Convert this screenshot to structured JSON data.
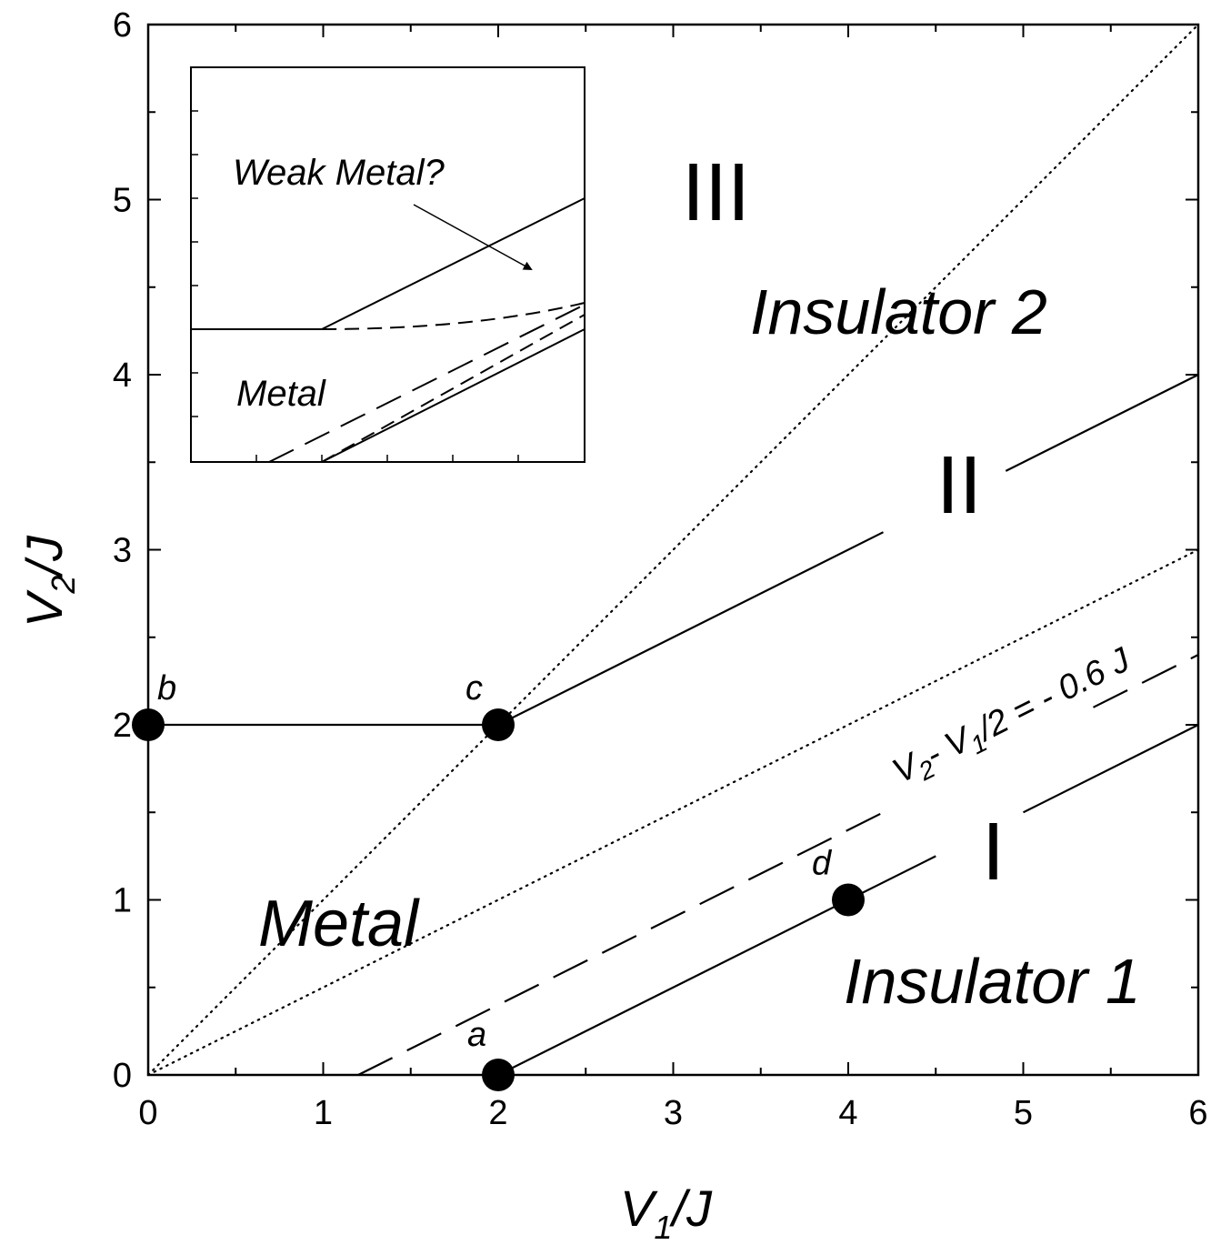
{
  "chart_data": {
    "type": "line",
    "xlabel_main": "V",
    "xlabel_sub": "1",
    "xlabel_tail": "/J",
    "ylabel_main": "V",
    "ylabel_sub": "2",
    "ylabel_tail": "/J",
    "xlim": [
      0,
      6
    ],
    "ylim": [
      0,
      6
    ],
    "x_ticks": [
      "0",
      "1",
      "2",
      "3",
      "4",
      "5",
      "6"
    ],
    "y_ticks": [
      "0",
      "1",
      "2",
      "3",
      "4",
      "5",
      "6"
    ],
    "grid": false,
    "series": [
      {
        "style": "solid",
        "x": [
          0,
          2
        ],
        "y": [
          2,
          2
        ]
      },
      {
        "style": "solid",
        "x": [
          2,
          4.2
        ],
        "y": [
          2,
          3.1
        ]
      },
      {
        "style": "solid",
        "x": [
          4.9,
          6
        ],
        "y": [
          3.45,
          4
        ]
      },
      {
        "style": "solid",
        "x": [
          2,
          4.5
        ],
        "y": [
          0,
          1.25
        ]
      },
      {
        "style": "solid",
        "x": [
          5.0,
          6
        ],
        "y": [
          1.5,
          2
        ]
      },
      {
        "style": "dotted",
        "x": [
          0,
          6
        ],
        "y": [
          0,
          6
        ]
      },
      {
        "style": "dotted",
        "x": [
          0,
          6
        ],
        "y": [
          0,
          3
        ]
      },
      {
        "style": "dashed",
        "x": [
          1.2,
          4.2
        ],
        "y": [
          0,
          1.5
        ]
      },
      {
        "style": "dashed",
        "x": [
          5.4,
          6
        ],
        "y": [
          2.1,
          2.4
        ]
      }
    ],
    "points": [
      {
        "label": "a",
        "x": 2,
        "y": 0
      },
      {
        "label": "b",
        "x": 0,
        "y": 2
      },
      {
        "label": "c",
        "x": 2,
        "y": 2
      },
      {
        "label": "d",
        "x": 4,
        "y": 1
      }
    ],
    "annotations": {
      "region_III": "III",
      "region_II": "II",
      "region_I": "I",
      "insulator2": "Insulator 2",
      "insulator1": "Insulator 1",
      "metal": "Metal",
      "line_label_main": "V",
      "line_label_sub2": "2",
      "line_label_mid": "- V",
      "line_label_sub1": "1",
      "line_label_tail": "/2 = - 0.6 J"
    },
    "inset": {
      "weak_metal": "Weak Metal?",
      "metal": "Metal"
    }
  }
}
